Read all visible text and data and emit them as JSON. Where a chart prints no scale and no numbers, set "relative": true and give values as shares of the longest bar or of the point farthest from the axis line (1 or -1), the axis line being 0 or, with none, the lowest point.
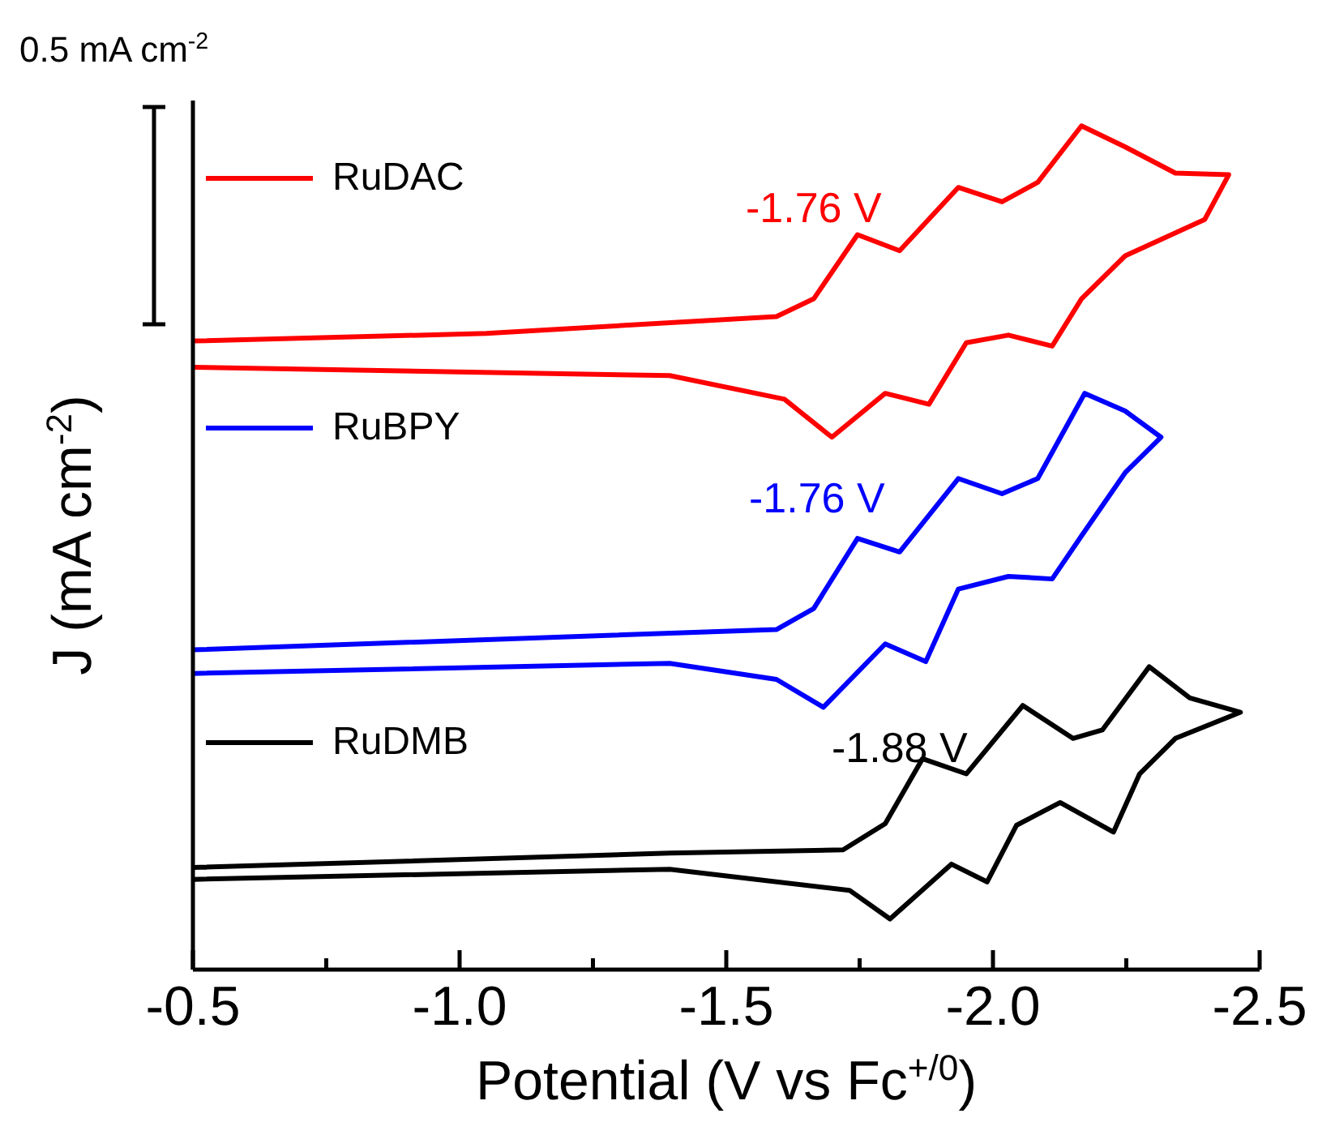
{
  "chart_data": {
    "type": "line",
    "relative": true,
    "xlabel": "Potential (V vs Fc$^{+/0}$)",
    "ylabel": "J (mA cm$^{-2}$)",
    "xlim": [
      -0.5,
      -2.5
    ],
    "xticks": [
      -0.5,
      {
        "value": -0.75,
        "label": null
      },
      {
        "value": -1.0,
        "label": "-1.0"
      },
      {
        "value": -1.25,
        "label": null
      },
      -1.5,
      {
        "value": -1.75,
        "label": null
      },
      {
        "value": -2.0,
        "label": "-2.0"
      },
      {
        "value": -2.25,
        "label": null
      },
      -2.5
    ],
    "legend": "top left",
    "marker": "none",
    "line_style": "solid",
    "grid": false,
    "series": [
      {
        "name": "RuDAC",
        "color": "#ff0000",
        "x": [
          -0.5,
          -1.05,
          -1.594,
          -1.664,
          -1.746,
          -1.825,
          -1.935,
          -2.017,
          -2.084,
          -2.166,
          -2.248,
          -2.342,
          -2.442,
          -2.397,
          -2.248,
          -2.166,
          -2.111,
          -2.029,
          -1.95,
          -1.88,
          -1.798,
          -1.698,
          -1.609,
          -1.394,
          -0.5
        ],
        "values": [
          0.745,
          0.754,
          0.774,
          0.795,
          0.871,
          0.852,
          0.927,
          0.91,
          0.933,
          1.0,
          0.975,
          0.944,
          0.942,
          0.889,
          0.846,
          0.795,
          0.739,
          0.752,
          0.743,
          0.67,
          0.683,
          0.631,
          0.676,
          0.704,
          0.714
        ]
      },
      {
        "name": "RuBPY",
        "color": "#0000ff",
        "x": [
          -0.5,
          -1.594,
          -1.664,
          -1.746,
          -1.825,
          -1.935,
          -2.017,
          -2.084,
          -2.172,
          -2.248,
          -2.315,
          -2.248,
          -2.166,
          -2.111,
          -2.029,
          -1.935,
          -1.874,
          -1.798,
          -1.682,
          -1.594,
          -1.394,
          -0.5
        ],
        "values": [
          0.379,
          0.403,
          0.428,
          0.511,
          0.495,
          0.582,
          0.564,
          0.582,
          0.683,
          0.662,
          0.631,
          0.589,
          0.514,
          0.463,
          0.466,
          0.451,
          0.365,
          0.386,
          0.311,
          0.344,
          0.363,
          0.351
        ]
      },
      {
        "name": "RuDMB",
        "color": "#000000",
        "x": [
          -0.5,
          -1.394,
          -1.719,
          -1.798,
          -1.868,
          -1.95,
          -2.056,
          -2.15,
          -2.205,
          -2.293,
          -2.369,
          -2.464,
          -2.342,
          -2.275,
          -2.226,
          -2.126,
          -2.044,
          -1.989,
          -1.922,
          -1.807,
          -1.731,
          -1.394,
          -0.5
        ],
        "values": [
          0.121,
          0.138,
          0.142,
          0.173,
          0.25,
          0.232,
          0.313,
          0.274,
          0.284,
          0.359,
          0.322,
          0.305,
          0.274,
          0.232,
          0.163,
          0.198,
          0.171,
          0.104,
          0.125,
          0.06,
          0.094,
          0.119,
          0.107
        ]
      }
    ],
    "annotations": [
      "-1.76 V",
      "-1.76 V",
      "-1.88 V",
      "0.5 mA cm$^{-2}$"
    ]
  }
}
